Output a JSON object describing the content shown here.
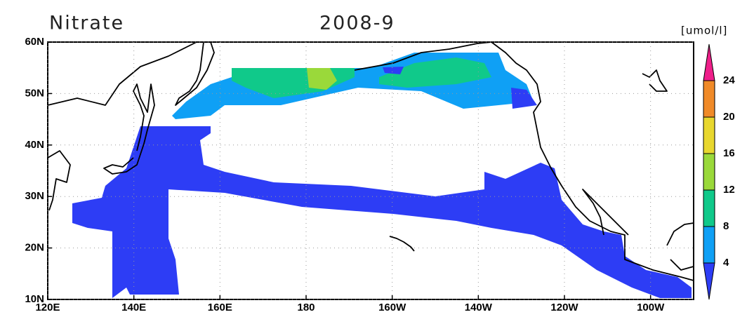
{
  "chart_data": {
    "type": "map",
    "title": "Nitrate",
    "subtitle": "2008-9",
    "colorbar_label": "[umol/l]",
    "xlim": [
      120,
      270
    ],
    "ylim": [
      10,
      60
    ],
    "xticks": [
      {
        "value": 120,
        "label": "120E"
      },
      {
        "value": 140,
        "label": "140E"
      },
      {
        "value": 160,
        "label": "160E"
      },
      180,
      {
        "value": 200,
        "label": "160W"
      },
      {
        "value": 220,
        "label": "140W"
      },
      {
        "value": 240,
        "label": "120W"
      },
      {
        "value": 260,
        "label": "100W"
      }
    ],
    "yticks": [
      {
        "value": 10,
        "label": "10N"
      },
      {
        "value": 20,
        "label": "20N"
      },
      {
        "value": 30,
        "label": "30N"
      },
      {
        "value": 40,
        "label": "40N"
      },
      {
        "value": 50,
        "label": "50N"
      },
      {
        "value": 60,
        "label": "60N"
      }
    ],
    "grid": true,
    "levels": [
      4,
      8,
      12,
      16,
      20,
      24
    ],
    "colors": [
      "#2d3df5",
      "#0fa0f5",
      "#10c98a",
      "#9ad93a",
      "#e8d72e",
      "#f08a28",
      "#ef1f8a"
    ]
  }
}
